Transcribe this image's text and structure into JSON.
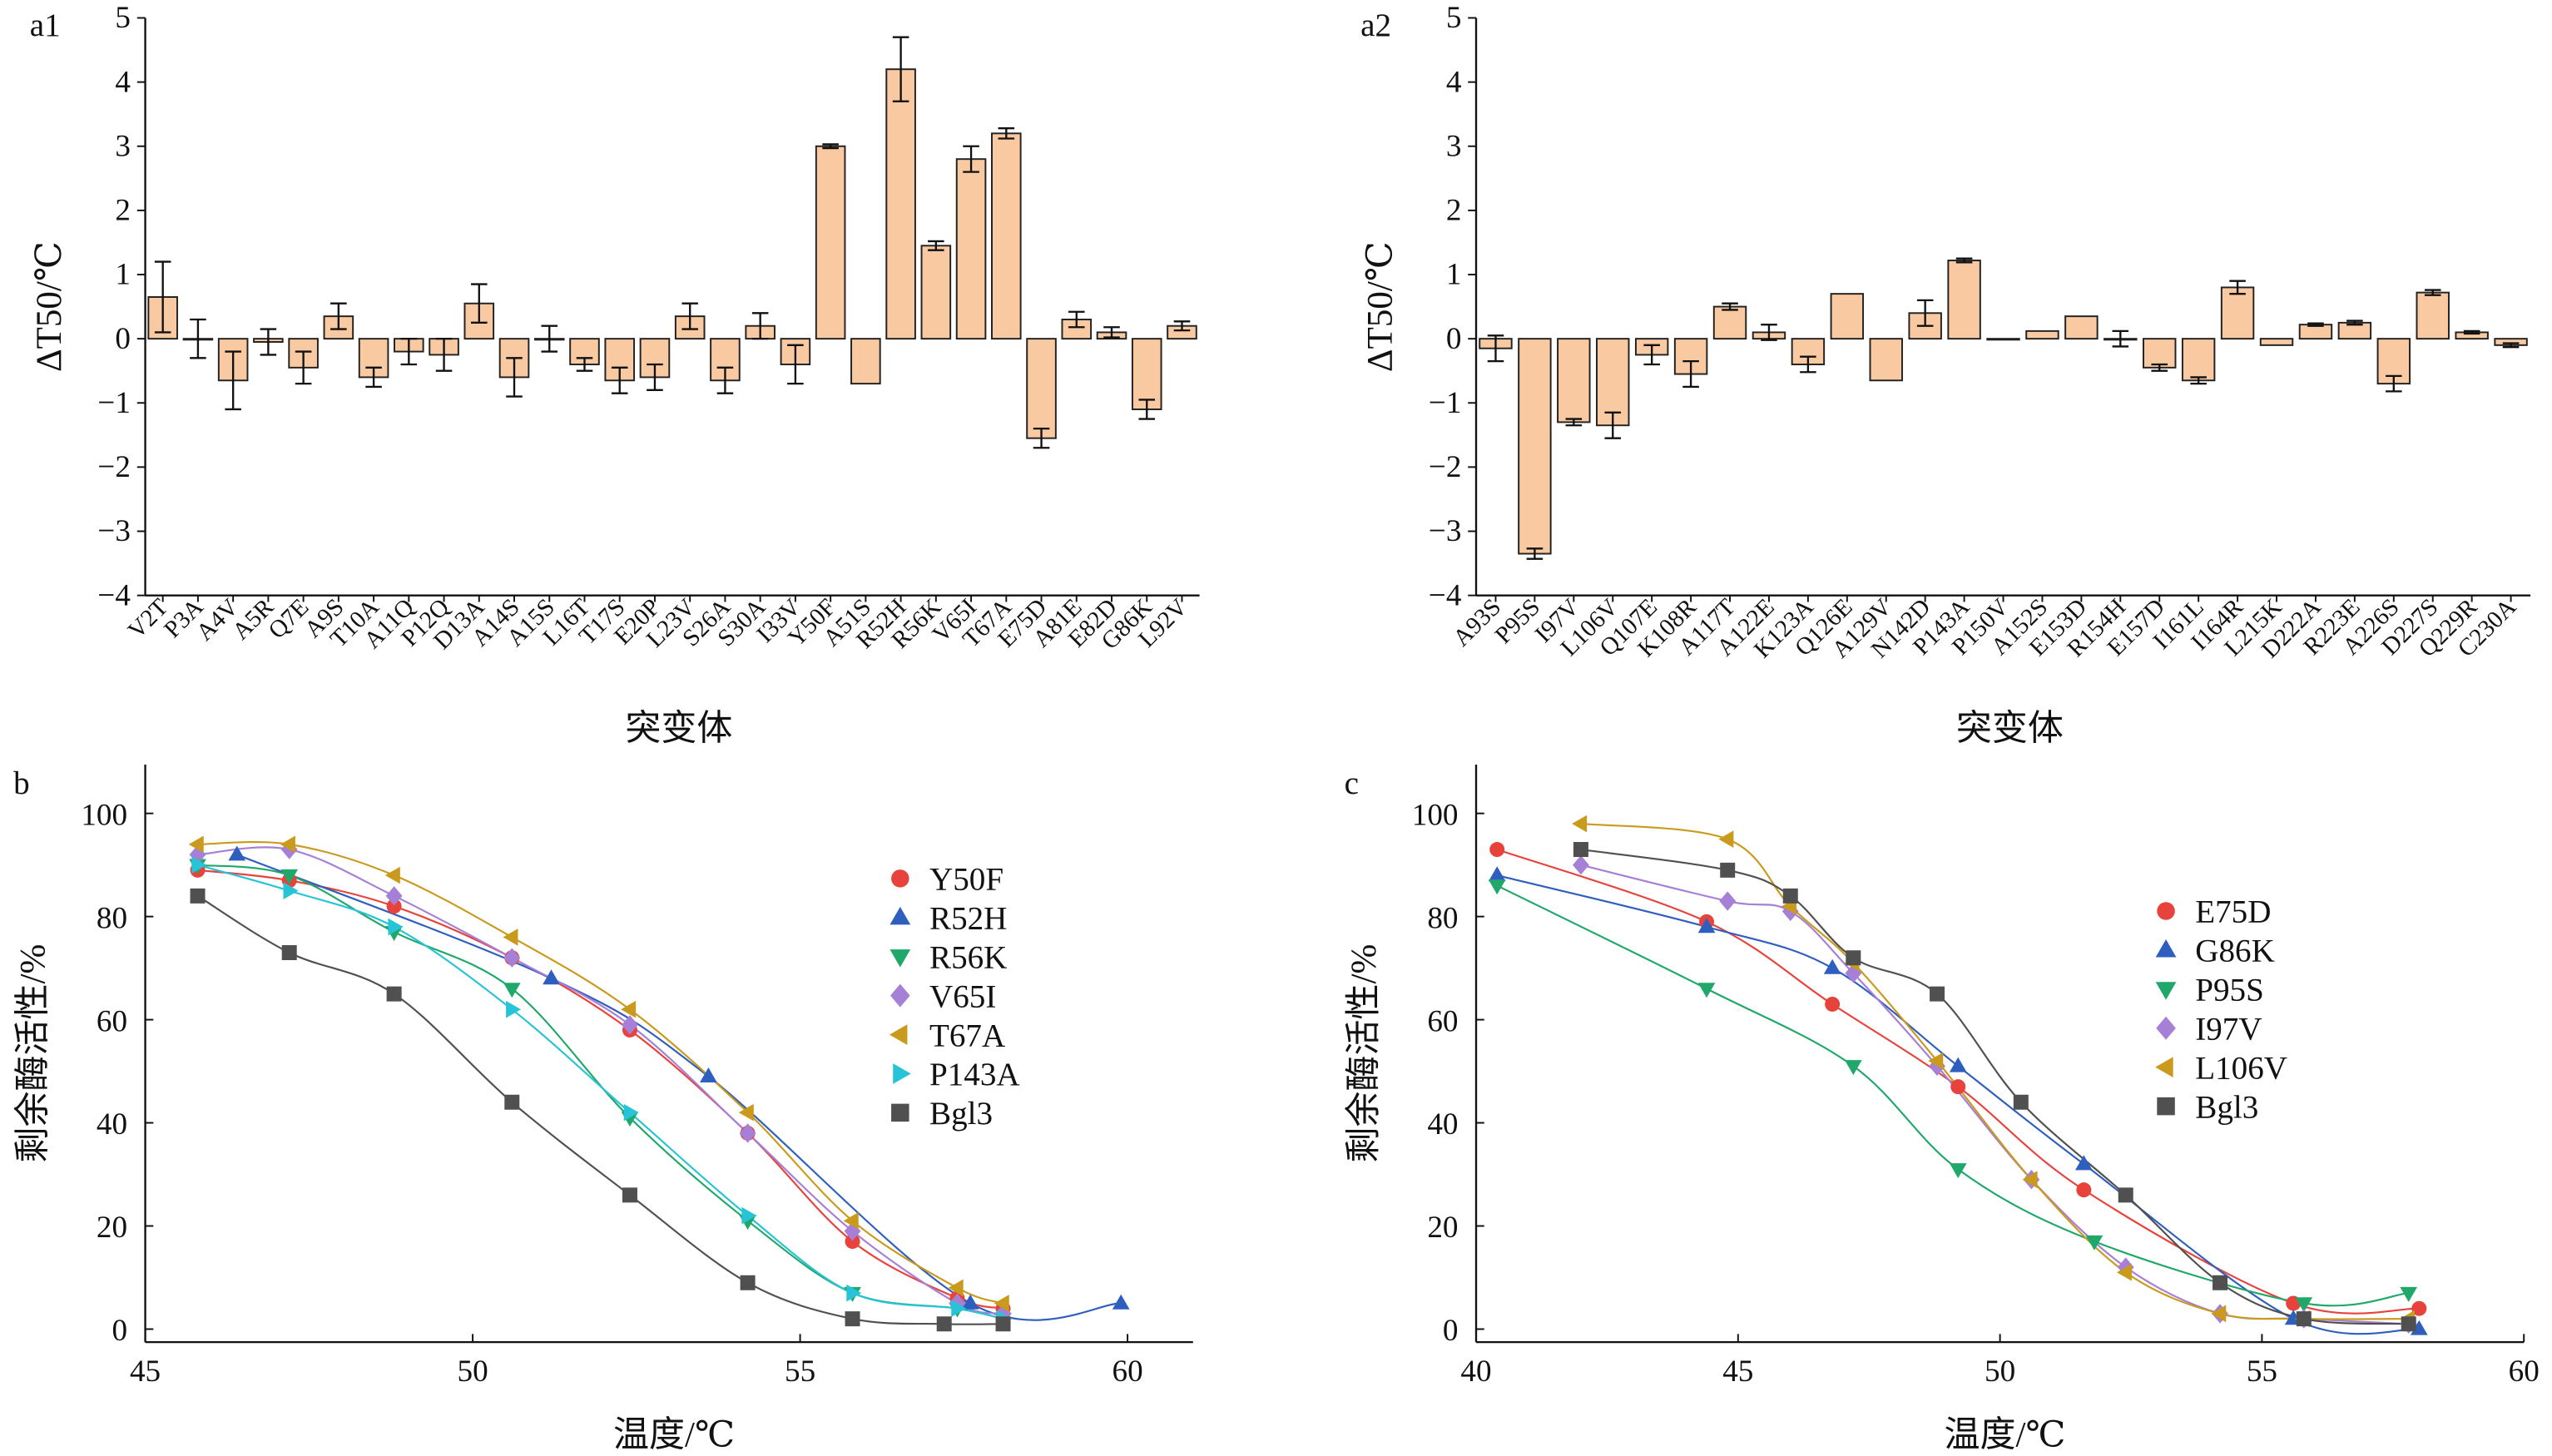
{
  "chart_data": [
    {
      "id": "a1",
      "type": "bar",
      "panel_label": "a1",
      "ylabel": "ΔT50/℃",
      "xlabel": "突变体",
      "ylim": [
        -4,
        5
      ],
      "yticks": [
        -4,
        -3,
        -2,
        -1,
        0,
        1,
        2,
        3,
        4,
        5
      ],
      "bar_color": "#f9c9a1",
      "categories": [
        "V2T",
        "P3A",
        "A4V",
        "A5R",
        "Q7E",
        "A9S",
        "T10A",
        "A11Q",
        "P12Q",
        "D13A",
        "A14S",
        "A15S",
        "L16T",
        "T17S",
        "E20P",
        "L23V",
        "S26A",
        "S30A",
        "I33V",
        "Y50F",
        "A51S",
        "R52H",
        "R56K",
        "V65I",
        "T67A",
        "E75D",
        "A81E",
        "E82D",
        "G86K",
        "L92V"
      ],
      "values": [
        0.65,
        0.0,
        -0.65,
        -0.05,
        -0.45,
        0.35,
        -0.6,
        -0.2,
        -0.25,
        0.55,
        -0.6,
        0.0,
        -0.4,
        -0.65,
        -0.6,
        0.35,
        -0.65,
        0.2,
        -0.4,
        3.0,
        -0.7,
        4.2,
        1.45,
        2.8,
        3.2,
        -1.55,
        0.3,
        0.1,
        -1.1,
        0.2
      ],
      "errors": [
        0.55,
        0.3,
        0.45,
        0.2,
        0.25,
        0.2,
        0.15,
        0.2,
        0.25,
        0.3,
        0.3,
        0.2,
        0.1,
        0.2,
        0.2,
        0.2,
        0.2,
        0.2,
        0.3,
        0.03,
        0.0,
        0.5,
        0.07,
        0.2,
        0.08,
        0.15,
        0.12,
        0.08,
        0.15,
        0.07
      ]
    },
    {
      "id": "a2",
      "type": "bar",
      "panel_label": "a2",
      "ylabel": "ΔT50/℃",
      "xlabel": "突变体",
      "ylim": [
        -4,
        5
      ],
      "yticks": [
        -4,
        -3,
        -2,
        -1,
        0,
        1,
        2,
        3,
        4,
        5
      ],
      "bar_color": "#f9c9a1",
      "categories": [
        "A93S",
        "P95S",
        "I97V",
        "L106V",
        "Q107E",
        "K108R",
        "A117T",
        "A122E",
        "K123A",
        "Q126E",
        "A129V",
        "N142D",
        "P143A",
        "P150V",
        "A152S",
        "E153D",
        "R154H",
        "E157D",
        "I161L",
        "I164R",
        "L215K",
        "D222A",
        "R223E",
        "A226S",
        "D227S",
        "Q229R",
        "C230A"
      ],
      "values": [
        -0.15,
        -3.35,
        -1.3,
        -1.35,
        -0.25,
        -0.55,
        0.5,
        0.1,
        -0.4,
        0.7,
        -0.65,
        0.4,
        1.22,
        0.0,
        0.12,
        0.35,
        0.0,
        -0.45,
        -0.65,
        0.8,
        -0.1,
        0.22,
        0.25,
        -0.7,
        0.72,
        0.1,
        -0.1
      ],
      "errors": [
        0.2,
        0.08,
        0.05,
        0.2,
        0.15,
        0.2,
        0.05,
        0.12,
        0.12,
        0.0,
        0.0,
        0.2,
        0.03,
        0.0,
        0.0,
        0.0,
        0.12,
        0.05,
        0.05,
        0.1,
        0.0,
        0.02,
        0.03,
        0.12,
        0.04,
        0.02,
        0.03
      ]
    },
    {
      "id": "b",
      "type": "scatter",
      "panel_label": "b",
      "xlabel": "温度/℃",
      "ylabel": "剩余酶活性/%",
      "xlim": [
        45,
        61
      ],
      "ylim": [
        -2,
        110
      ],
      "xticks": [
        45,
        50,
        55,
        60
      ],
      "yticks": [
        0,
        20,
        40,
        60,
        80,
        100
      ],
      "series": [
        {
          "name": "Y50F",
          "color": "#e8423c",
          "marker": "circle",
          "x": [
            45.8,
            47.2,
            48.8,
            50.6,
            52.4,
            54.2,
            55.8,
            57.4,
            58.1
          ],
          "y": [
            89,
            87,
            82,
            72,
            58,
            38,
            17,
            6,
            4
          ]
        },
        {
          "name": "R52H",
          "color": "#2e5fbf",
          "marker": "triangle-up",
          "x": [
            46.4,
            51.2,
            53.6,
            57.6,
            59.9
          ],
          "y": [
            92,
            68,
            49,
            5,
            5
          ]
        },
        {
          "name": "R56K",
          "color": "#20a86a",
          "marker": "triangle-down",
          "x": [
            45.8,
            47.2,
            48.8,
            50.6,
            52.4,
            54.2,
            55.8,
            57.4,
            58.1
          ],
          "y": [
            90,
            88,
            77,
            66,
            41,
            21,
            7,
            4,
            2
          ]
        },
        {
          "name": "V65I",
          "color": "#a67fd6",
          "marker": "diamond",
          "x": [
            45.8,
            47.2,
            48.8,
            50.6,
            52.4,
            54.2,
            55.8,
            57.4,
            58.1
          ],
          "y": [
            92,
            93,
            84,
            72,
            59,
            38,
            19,
            5,
            3
          ]
        },
        {
          "name": "T67A",
          "color": "#c99a1c",
          "marker": "triangle-left",
          "x": [
            45.8,
            47.2,
            48.8,
            50.6,
            52.4,
            54.2,
            55.8,
            57.4,
            58.1
          ],
          "y": [
            94,
            94,
            88,
            76,
            62,
            42,
            21,
            8,
            5
          ]
        },
        {
          "name": "P143A",
          "color": "#27c3d6",
          "marker": "triangle-right",
          "x": [
            45.8,
            47.2,
            48.8,
            50.6,
            52.4,
            54.2,
            55.8,
            57.4,
            58.1
          ],
          "y": [
            90,
            85,
            78,
            62,
            42,
            22,
            7,
            4,
            2
          ]
        },
        {
          "name": "Bgl3",
          "color": "#505050",
          "marker": "square",
          "x": [
            45.8,
            47.2,
            48.8,
            50.6,
            52.4,
            54.2,
            55.8,
            57.2,
            58.1
          ],
          "y": [
            84,
            73,
            65,
            44,
            26,
            9,
            2,
            1,
            1
          ]
        }
      ]
    },
    {
      "id": "c",
      "type": "scatter",
      "panel_label": "c",
      "xlabel": "温度/℃",
      "ylabel": "剩余酶活性/%",
      "xlim": [
        40,
        60
      ],
      "ylim": [
        -2,
        110
      ],
      "xticks": [
        40,
        45,
        50,
        55,
        60
      ],
      "yticks": [
        0,
        20,
        40,
        60,
        80,
        100
      ],
      "series": [
        {
          "name": "E75D",
          "color": "#e8423c",
          "marker": "circle",
          "x": [
            40.4,
            44.4,
            46.8,
            49.2,
            51.6,
            55.6,
            58.0
          ],
          "y": [
            93,
            79,
            63,
            47,
            27,
            5,
            4
          ]
        },
        {
          "name": "G86K",
          "color": "#2e5fbf",
          "marker": "triangle-up",
          "x": [
            40.4,
            44.4,
            46.8,
            49.2,
            51.6,
            55.6,
            58.0
          ],
          "y": [
            88,
            78,
            70,
            51,
            32,
            2,
            0
          ]
        },
        {
          "name": "P95S",
          "color": "#20a86a",
          "marker": "triangle-down",
          "x": [
            40.4,
            44.4,
            47.2,
            49.2,
            51.8,
            55.8,
            57.8
          ],
          "y": [
            86,
            66,
            51,
            31,
            17,
            5,
            7
          ]
        },
        {
          "name": "I97V",
          "color": "#a67fd6",
          "marker": "diamond",
          "x": [
            42.0,
            44.8,
            46.0,
            47.2,
            48.8,
            50.6,
            52.4,
            54.2,
            55.8,
            57.8
          ],
          "y": [
            90,
            83,
            81,
            69,
            51,
            29,
            12,
            3,
            2,
            1
          ]
        },
        {
          "name": "L106V",
          "color": "#c99a1c",
          "marker": "triangle-left",
          "x": [
            42.0,
            44.8,
            46.0,
            47.2,
            48.8,
            50.6,
            52.4,
            54.2,
            55.8,
            57.8
          ],
          "y": [
            98,
            95,
            82,
            71,
            52,
            29,
            11,
            3,
            2,
            2
          ]
        },
        {
          "name": "Bgl3",
          "color": "#505050",
          "marker": "square",
          "x": [
            42.0,
            44.8,
            46.0,
            47.2,
            48.8,
            50.4,
            52.4,
            54.2,
            55.8,
            57.8
          ],
          "y": [
            93,
            89,
            84,
            72,
            65,
            44,
            26,
            9,
            2,
            1
          ]
        }
      ]
    }
  ]
}
